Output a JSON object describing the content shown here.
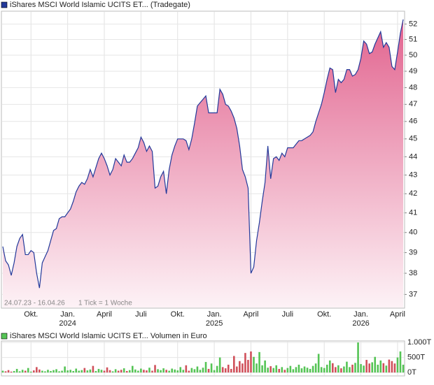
{
  "chart_data": [
    {
      "type": "area",
      "series": [
        {
          "name": "iShares MSCI World Islamic UCITS ET... (Tradegate)",
          "color": "#23399a",
          "values": [
            39.3,
            38.6,
            38.4,
            37.9,
            38.5,
            39.3,
            39.7,
            39.9,
            38.9,
            38.9,
            39.1,
            39.0,
            38.0,
            37.3,
            38.5,
            38.8,
            39.1,
            39.6,
            40.1,
            40.2,
            40.7,
            40.8,
            40.8,
            41.0,
            41.2,
            41.6,
            42.1,
            42.4,
            42.6,
            42.5,
            42.8,
            43.3,
            42.9,
            43.4,
            43.9,
            44.2,
            43.9,
            43.5,
            43.0,
            43.3,
            43.9,
            43.7,
            43.5,
            44.1,
            43.7,
            43.7,
            43.9,
            44.2,
            44.5,
            45.1,
            44.8,
            44.3,
            44.6,
            44.3,
            42.3,
            42.4,
            42.9,
            43.2,
            42.0,
            43.3,
            44.1,
            44.6,
            45.0,
            45.0,
            45.0,
            44.9,
            44.4,
            45.0,
            45.9,
            46.9,
            47.1,
            47.3,
            47.5,
            46.5,
            46.5,
            46.5,
            46.5,
            47.9,
            47.6,
            47.0,
            46.9,
            46.6,
            46.2,
            45.6,
            44.6,
            43.3,
            42.9,
            42.3,
            38.0,
            38.3,
            39.6,
            40.5,
            41.6,
            42.6,
            44.6,
            42.8,
            43.9,
            44.0,
            43.8,
            44.2,
            44.0,
            44.5,
            44.5,
            44.5,
            44.7,
            44.9,
            44.9,
            45.0,
            45.1,
            45.2,
            45.4,
            46.0,
            46.5,
            47.0,
            47.7,
            48.5,
            49.2,
            49.1,
            47.7,
            48.5,
            48.3,
            48.5,
            49.1,
            49.1,
            48.7,
            48.8,
            49.1,
            49.8,
            50.9,
            50.7,
            50.1,
            50.2,
            50.7,
            51.1,
            51.5,
            50.5,
            50.8,
            50.5,
            49.3,
            49.1,
            50.2,
            51.4,
            52.3
          ]
        }
      ],
      "fill_top": "#e2648f",
      "fill_bottom": "#fdf2f6",
      "period": "24.07.23 - 16.04.26",
      "tick_note": "1 Tick = 1 Woche",
      "yscale": "log",
      "ylim": [
        36.4,
        52.8
      ],
      "yticks": [
        37,
        38,
        39,
        40,
        41,
        42,
        43,
        44,
        45,
        46,
        47,
        48,
        49,
        50,
        51,
        52
      ],
      "xticks": [
        {
          "value": 10,
          "label": "Okt."
        },
        {
          "value": 23,
          "label": "Jan."
        },
        {
          "value": 36,
          "label": "April"
        },
        {
          "value": 49,
          "label": "Juli"
        },
        {
          "value": 62,
          "label": "Okt."
        },
        {
          "value": 75,
          "label": "Jan."
        },
        {
          "value": 88,
          "label": "April"
        },
        {
          "value": 101,
          "label": "Juli"
        },
        {
          "value": 114,
          "label": "Okt."
        },
        {
          "value": 127,
          "label": "Jan."
        },
        {
          "value": 140,
          "label": "April"
        }
      ],
      "year_labels": [
        {
          "value": 23,
          "label": "2024"
        },
        {
          "value": 75,
          "label": "2025"
        },
        {
          "value": 127,
          "label": "2026"
        }
      ],
      "grid": true
    },
    {
      "type": "bar",
      "series": [
        {
          "name": "iShares MSCI World Islamic UCITS ET... Volumen in Euro",
          "color": "#55c455",
          "values": [
            60,
            40,
            80,
            30,
            50,
            120,
            40,
            90,
            60,
            150,
            30,
            70,
            180,
            100,
            60,
            40,
            90,
            50,
            80,
            110,
            40,
            60,
            200,
            70,
            90,
            50,
            130,
            60,
            80,
            150,
            70,
            100,
            220,
            50,
            120,
            90,
            60,
            170,
            80,
            40,
            110,
            60,
            90,
            140,
            50,
            80,
            220,
            100,
            60,
            130,
            90,
            70,
            160,
            60,
            250,
            110,
            80,
            140,
            90,
            60,
            130,
            100,
            70,
            180,
            90,
            240,
            60,
            150,
            110,
            200,
            90,
            160,
            350,
            120,
            300,
            80,
            220,
            500,
            180,
            140,
            260,
            120,
            550,
            200,
            380,
            300,
            650,
            420,
            700,
            520,
            300,
            680,
            240,
            400,
            160,
            210,
            150,
            240,
            120,
            180,
            90,
            150,
            220,
            110,
            180,
            260,
            140,
            200,
            160,
            120,
            220,
            300,
            620,
            180,
            150,
            260,
            400,
            310,
            180,
            240,
            140,
            200,
            360,
            180,
            260,
            320,
            1000,
            280,
            230,
            420,
            300,
            340,
            520,
            260,
            400,
            310,
            230,
            430,
            380,
            300,
            500,
            700,
            260
          ]
        }
      ],
      "up_color": "#55c455",
      "down_color": "#d0505a",
      "ylim": [
        -90,
        1025
      ],
      "yticks": [
        {
          "value": 1000,
          "label": "1.000T"
        },
        {
          "value": 500,
          "label": "500T"
        },
        {
          "value": 0,
          "label": "0T"
        }
      ]
    }
  ]
}
